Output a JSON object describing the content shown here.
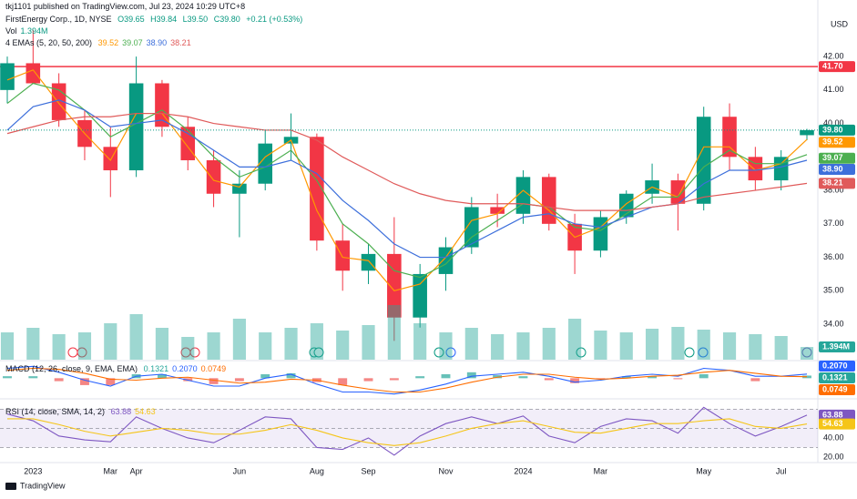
{
  "header": {
    "publisher": "tkj1101 published on TradingView.com, Jul 23, 2024 10:29 UTC+8",
    "symbol": "FirstEnergy Corp., 1D, NYSE",
    "ohlc": [
      "O39.65",
      "H39.84",
      "L39.50",
      "C39.80"
    ],
    "change": "+0.21 (+0.53%)",
    "currency": "USD",
    "logo": "TradingView"
  },
  "chart_data": [
    {
      "type": "candlestick",
      "categories": [
        null,
        "2023",
        null,
        null,
        "Mar",
        "Apr",
        null,
        null,
        null,
        "Jun",
        null,
        null,
        "Aug",
        null,
        "Sep",
        null,
        null,
        "Nov",
        null,
        null,
        "2024",
        null,
        null,
        "Mar",
        null,
        null,
        null,
        "May",
        null,
        null,
        "Jul",
        null
      ],
      "open": [
        41.0,
        41.8,
        41.2,
        40.1,
        39.3,
        38.6,
        41.2,
        39.9,
        38.9,
        37.9,
        38.2,
        39.4,
        39.6,
        36.5,
        35.6,
        36.1,
        34.2,
        35.5,
        36.3,
        37.5,
        37.3,
        38.4,
        37.0,
        36.2,
        37.2,
        37.9,
        38.3,
        37.6,
        40.2,
        39.0,
        38.3,
        39.65
      ],
      "high": [
        42.0,
        42.8,
        41.5,
        40.4,
        39.9,
        42.0,
        41.3,
        40.2,
        39.2,
        38.6,
        39.8,
        40.3,
        39.7,
        37.0,
        36.4,
        37.2,
        35.8,
        36.6,
        37.8,
        37.9,
        38.6,
        38.5,
        37.3,
        37.4,
        38.0,
        38.8,
        38.5,
        40.5,
        40.6,
        39.3,
        39.2,
        39.84
      ],
      "low": [
        40.6,
        41.3,
        39.9,
        38.9,
        37.8,
        38.4,
        39.6,
        38.6,
        37.5,
        36.6,
        38.0,
        38.9,
        36.2,
        35.0,
        35.2,
        33.5,
        33.9,
        35.0,
        36.1,
        36.9,
        37.0,
        36.8,
        35.5,
        36.0,
        37.0,
        37.6,
        36.8,
        37.4,
        38.6,
        38.0,
        38.0,
        39.5
      ],
      "close": [
        41.8,
        41.2,
        40.1,
        39.3,
        38.6,
        41.2,
        39.9,
        38.9,
        37.9,
        38.2,
        39.4,
        39.6,
        36.5,
        35.6,
        36.1,
        34.2,
        35.5,
        36.3,
        37.5,
        37.3,
        38.4,
        37.0,
        36.2,
        37.2,
        37.9,
        38.3,
        37.6,
        40.2,
        39.0,
        38.3,
        39.0,
        39.8
      ],
      "close_label": "39.80",
      "up_color": "#089981",
      "down_color": "#f23645",
      "ylim": [
        32.94,
        43.69
      ],
      "yticks": [
        {
          "value": 34,
          "label": "34.00"
        },
        {
          "value": 35,
          "label": "35.00"
        },
        {
          "value": 36,
          "label": "36.00"
        },
        {
          "value": 37,
          "label": "37.00"
        },
        {
          "value": 38,
          "label": "38.00"
        },
        {
          "value": 39,
          "label": "39.00"
        },
        {
          "value": 40,
          "label": "40.00"
        },
        {
          "value": 41,
          "label": "41.00"
        },
        {
          "value": 42,
          "label": "42.00"
        }
      ],
      "hline": {
        "value": 41.7,
        "label": "41.70",
        "color": "#f23645"
      },
      "indicator": "4 EMAs (5, 20, 50, 200)",
      "series": [
        {
          "color": "#ff9800",
          "last_label": "39.52",
          "values": [
            41.3,
            41.6,
            40.6,
            39.7,
            38.9,
            40.3,
            40.3,
            39.3,
            38.3,
            38.1,
            39.0,
            39.5,
            37.4,
            36.0,
            35.9,
            35.0,
            35.2,
            36.0,
            37.1,
            37.3,
            38.0,
            37.4,
            36.6,
            36.9,
            37.6,
            38.1,
            37.8,
            39.3,
            39.3,
            38.6,
            38.8,
            39.52
          ]
        },
        {
          "color": "#4caf50",
          "last_label": "39.07",
          "values": [
            40.6,
            41.2,
            41.0,
            40.4,
            39.6,
            40.0,
            40.4,
            39.8,
            39.0,
            38.4,
            38.7,
            39.2,
            38.3,
            37.0,
            36.4,
            35.6,
            35.4,
            35.8,
            36.6,
            37.1,
            37.6,
            37.5,
            36.9,
            36.8,
            37.3,
            37.8,
            37.8,
            38.7,
            39.2,
            38.8,
            38.8,
            39.07
          ]
        },
        {
          "color": "#3d6fdb",
          "last_label": "38.90",
          "values": [
            39.8,
            40.5,
            40.7,
            40.4,
            39.9,
            40.0,
            40.1,
            39.7,
            39.2,
            38.7,
            38.7,
            38.9,
            38.5,
            37.7,
            37.1,
            36.4,
            36.0,
            36.0,
            36.4,
            36.8,
            37.2,
            37.3,
            37.0,
            36.9,
            37.2,
            37.5,
            37.6,
            38.2,
            38.6,
            38.6,
            38.7,
            38.9
          ]
        },
        {
          "color": "#e05a5a",
          "last_label": "38.21",
          "values": [
            39.7,
            39.9,
            40.1,
            40.2,
            40.2,
            40.3,
            40.3,
            40.2,
            40.0,
            39.9,
            39.8,
            39.8,
            39.5,
            39.0,
            38.6,
            38.2,
            37.9,
            37.7,
            37.6,
            37.6,
            37.6,
            37.5,
            37.4,
            37.4,
            37.4,
            37.5,
            37.6,
            37.8,
            37.9,
            38.0,
            38.1,
            38.21
          ]
        }
      ]
    },
    {
      "type": "volume",
      "name": "Vol",
      "last_label": "1.394M",
      "color": "#26a69a",
      "ylim": [
        0,
        12
      ],
      "values": [
        3,
        3.5,
        2.8,
        3,
        4,
        5,
        3.5,
        2.5,
        3,
        4.5,
        3,
        3.5,
        4,
        3.2,
        3.8,
        6,
        4,
        3,
        3.5,
        2.8,
        3,
        3.5,
        4.5,
        3.2,
        3,
        3.4,
        3.6,
        3.3,
        3,
        2.8,
        2.6,
        1.394
      ]
    },
    {
      "type": "macd",
      "title": "MACD (12, 26, close, 9, EMA, EMA)",
      "ylim": [
        -1.0,
        0.8
      ],
      "series": [
        {
          "kind": "histogram",
          "color": "#26a69a",
          "negative_color": "#ef5350",
          "last_label": "0.1321",
          "values": [
            0.1,
            0.1,
            -0.15,
            -0.35,
            -0.35,
            0.2,
            0.2,
            -0.15,
            -0.3,
            -0.15,
            0.2,
            0.25,
            -0.2,
            -0.35,
            -0.15,
            -0.1,
            0.1,
            0.2,
            0.3,
            0.15,
            0.1,
            -0.1,
            -0.25,
            -0.05,
            0.1,
            0.1,
            -0.05,
            0.2,
            0.0,
            -0.15,
            0.0,
            0.1321
          ]
        },
        {
          "kind": "line",
          "color": "#2962ff",
          "last_label": "0.2070",
          "values": [
            0.5,
            0.6,
            0.3,
            -0.1,
            -0.4,
            0.1,
            0.2,
            -0.1,
            -0.4,
            -0.4,
            0.0,
            0.2,
            -0.3,
            -0.7,
            -0.7,
            -0.8,
            -0.6,
            -0.3,
            0.1,
            0.2,
            0.3,
            0.1,
            -0.2,
            -0.1,
            0.1,
            0.2,
            0.1,
            0.5,
            0.4,
            0.1,
            0.1,
            0.207
          ]
        },
        {
          "kind": "line",
          "color": "#ff6d00",
          "last_label": "0.0749",
          "values": [
            0.4,
            0.5,
            0.45,
            0.25,
            -0.05,
            -0.1,
            0.0,
            0.05,
            -0.1,
            -0.25,
            -0.2,
            -0.05,
            -0.1,
            -0.35,
            -0.55,
            -0.7,
            -0.7,
            -0.5,
            -0.2,
            0.05,
            0.2,
            0.2,
            0.05,
            -0.05,
            0.0,
            0.1,
            0.15,
            0.3,
            0.4,
            0.25,
            0.1,
            0.0749
          ]
        }
      ]
    },
    {
      "type": "rsi",
      "title": "RSI (14, close, SMA, 14, 2)",
      "ylim": [
        15.2,
        79
      ],
      "bands": [
        70,
        50,
        30
      ],
      "yticks": [
        {
          "value": 40,
          "label": "40.00"
        },
        {
          "value": 20,
          "label": "20.00"
        }
      ],
      "series": [
        {
          "color": "#7e57c2",
          "last_label": "63.88",
          "values": [
            65,
            58,
            42,
            38,
            36,
            62,
            50,
            40,
            35,
            48,
            62,
            60,
            30,
            28,
            40,
            22,
            42,
            55,
            62,
            55,
            63,
            42,
            35,
            52,
            60,
            58,
            45,
            72,
            55,
            42,
            52,
            63.88
          ]
        },
        {
          "color": "#f5c518",
          "last_label": "54.63",
          "values": [
            60,
            60,
            54,
            47,
            42,
            46,
            50,
            48,
            44,
            44,
            48,
            54,
            48,
            40,
            35,
            32,
            35,
            42,
            50,
            55,
            58,
            52,
            46,
            45,
            50,
            55,
            55,
            58,
            60,
            52,
            50,
            54.63
          ]
        }
      ]
    }
  ]
}
